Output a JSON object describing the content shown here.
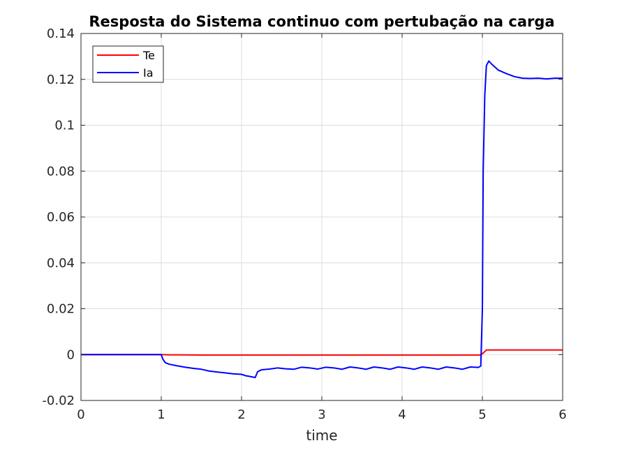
{
  "chart_data": {
    "type": "line",
    "title": "Resposta do Sistema continuo com pertubação na carga",
    "xlabel": "time",
    "ylabel": "",
    "xlim": [
      0,
      6
    ],
    "ylim": [
      -0.02,
      0.14
    ],
    "xticks": [
      0,
      1,
      2,
      3,
      4,
      5,
      6
    ],
    "xtick_labels": [
      "0",
      "1",
      "2",
      "3",
      "4",
      "5",
      "6"
    ],
    "yticks": [
      -0.02,
      0,
      0.02,
      0.04,
      0.06,
      0.08,
      0.1,
      0.12,
      0.14
    ],
    "ytick_labels": [
      "-0.02",
      "0",
      "0.02",
      "0.04",
      "0.06",
      "0.08",
      "0.1",
      "0.12",
      "0.14"
    ],
    "grid": true,
    "legend_position": "top-left",
    "series": [
      {
        "name": "Te",
        "color": "#ff0000",
        "points": [
          [
            0,
            0
          ],
          [
            1.0,
            0
          ],
          [
            1.1,
            -0.0001
          ],
          [
            1.5,
            -0.0002
          ],
          [
            2.0,
            -0.0002
          ],
          [
            3.0,
            -0.0002
          ],
          [
            4.0,
            -0.0002
          ],
          [
            4.98,
            -0.0002
          ],
          [
            5.02,
            0.001
          ],
          [
            5.05,
            0.002
          ],
          [
            5.2,
            0.002
          ],
          [
            6.0,
            0.002
          ]
        ]
      },
      {
        "name": "Ia",
        "color": "#0000ff",
        "points": [
          [
            0,
            0
          ],
          [
            1.0,
            0
          ],
          [
            1.02,
            -0.002
          ],
          [
            1.05,
            -0.0035
          ],
          [
            1.1,
            -0.0042
          ],
          [
            1.2,
            -0.0049
          ],
          [
            1.3,
            -0.0055
          ],
          [
            1.4,
            -0.006
          ],
          [
            1.5,
            -0.0064
          ],
          [
            1.6,
            -0.0072
          ],
          [
            1.7,
            -0.0076
          ],
          [
            1.8,
            -0.008
          ],
          [
            1.9,
            -0.0084
          ],
          [
            2.0,
            -0.0086
          ],
          [
            2.05,
            -0.0092
          ],
          [
            2.1,
            -0.0095
          ],
          [
            2.17,
            -0.01
          ],
          [
            2.2,
            -0.0075
          ],
          [
            2.25,
            -0.0066
          ],
          [
            2.35,
            -0.0063
          ],
          [
            2.45,
            -0.0058
          ],
          [
            2.55,
            -0.0062
          ],
          [
            2.65,
            -0.0064
          ],
          [
            2.75,
            -0.0055
          ],
          [
            2.85,
            -0.0058
          ],
          [
            2.95,
            -0.0063
          ],
          [
            3.05,
            -0.0055
          ],
          [
            3.15,
            -0.0058
          ],
          [
            3.25,
            -0.0064
          ],
          [
            3.35,
            -0.0054
          ],
          [
            3.45,
            -0.0058
          ],
          [
            3.55,
            -0.0064
          ],
          [
            3.65,
            -0.0054
          ],
          [
            3.75,
            -0.0058
          ],
          [
            3.85,
            -0.0064
          ],
          [
            3.95,
            -0.0054
          ],
          [
            4.05,
            -0.0058
          ],
          [
            4.15,
            -0.0064
          ],
          [
            4.25,
            -0.0054
          ],
          [
            4.35,
            -0.0058
          ],
          [
            4.45,
            -0.0064
          ],
          [
            4.55,
            -0.0054
          ],
          [
            4.65,
            -0.0058
          ],
          [
            4.75,
            -0.0064
          ],
          [
            4.85,
            -0.0054
          ],
          [
            4.95,
            -0.0056
          ],
          [
            4.98,
            -0.005
          ],
          [
            5.0,
            0.02
          ],
          [
            5.01,
            0.08
          ],
          [
            5.03,
            0.113
          ],
          [
            5.05,
            0.126
          ],
          [
            5.08,
            0.128
          ],
          [
            5.12,
            0.1265
          ],
          [
            5.2,
            0.124
          ],
          [
            5.3,
            0.1225
          ],
          [
            5.4,
            0.1212
          ],
          [
            5.5,
            0.1205
          ],
          [
            5.6,
            0.1204
          ],
          [
            5.7,
            0.1205
          ],
          [
            5.8,
            0.1202
          ],
          [
            5.9,
            0.1205
          ],
          [
            6.0,
            0.1205
          ]
        ]
      }
    ]
  }
}
